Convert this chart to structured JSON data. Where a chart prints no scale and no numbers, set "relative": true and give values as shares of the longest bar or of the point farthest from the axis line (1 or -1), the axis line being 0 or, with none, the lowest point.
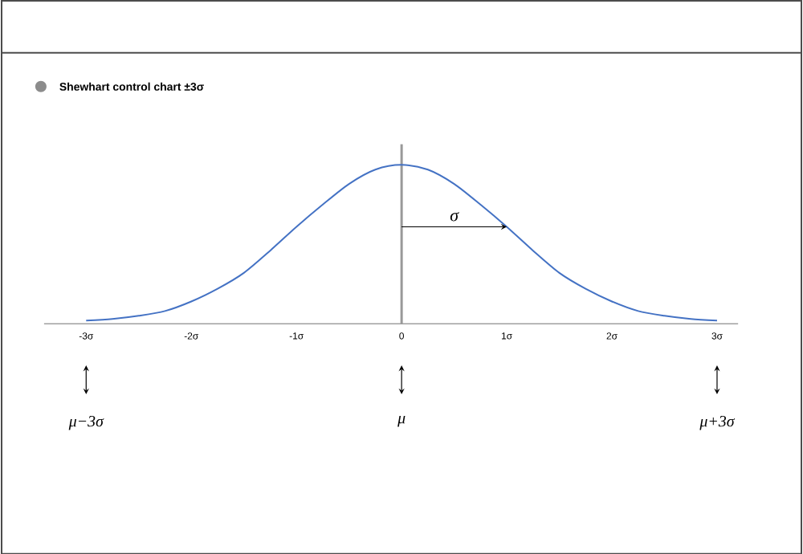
{
  "chart_data": {
    "type": "line",
    "relative": true,
    "title": "Shewhart control chart ±3σ",
    "x": [
      -3,
      -2.75,
      -2.5,
      -2.25,
      -2,
      -1.75,
      -1.5,
      -1.25,
      -1,
      -0.75,
      -0.5,
      -0.25,
      0,
      0.25,
      0.5,
      0.75,
      1,
      1.25,
      1.5,
      1.75,
      2,
      2.25,
      2.5,
      2.75,
      3
    ],
    "series": [
      {
        "color": "#4472c4",
        "values": [
          0.02,
          0.03,
          0.05,
          0.08,
          0.14,
          0.22,
          0.32,
          0.46,
          0.61,
          0.75,
          0.88,
          0.97,
          1,
          0.97,
          0.88,
          0.75,
          0.61,
          0.46,
          0.32,
          0.22,
          0.14,
          0.08,
          0.05,
          0.03,
          0.02
        ]
      }
    ],
    "xlim": [
      -3.4,
      3.2
    ],
    "xticks": [
      {
        "value": -3,
        "label": "-3σ"
      },
      {
        "value": -2,
        "label": "-2σ"
      },
      {
        "value": -1,
        "label": "-1σ"
      },
      0,
      {
        "value": 1,
        "label": "1σ"
      },
      {
        "value": 2,
        "label": "2σ"
      },
      {
        "value": 3,
        "label": "3σ"
      }
    ],
    "ref_lines": [
      {
        "axis": "x",
        "value": 0,
        "color": "#999999"
      }
    ],
    "annotations": [
      "σ",
      "μ−3σ",
      "μ",
      "μ+3σ"
    ],
    "grid": false,
    "marker": "none",
    "line_style": "solid"
  }
}
